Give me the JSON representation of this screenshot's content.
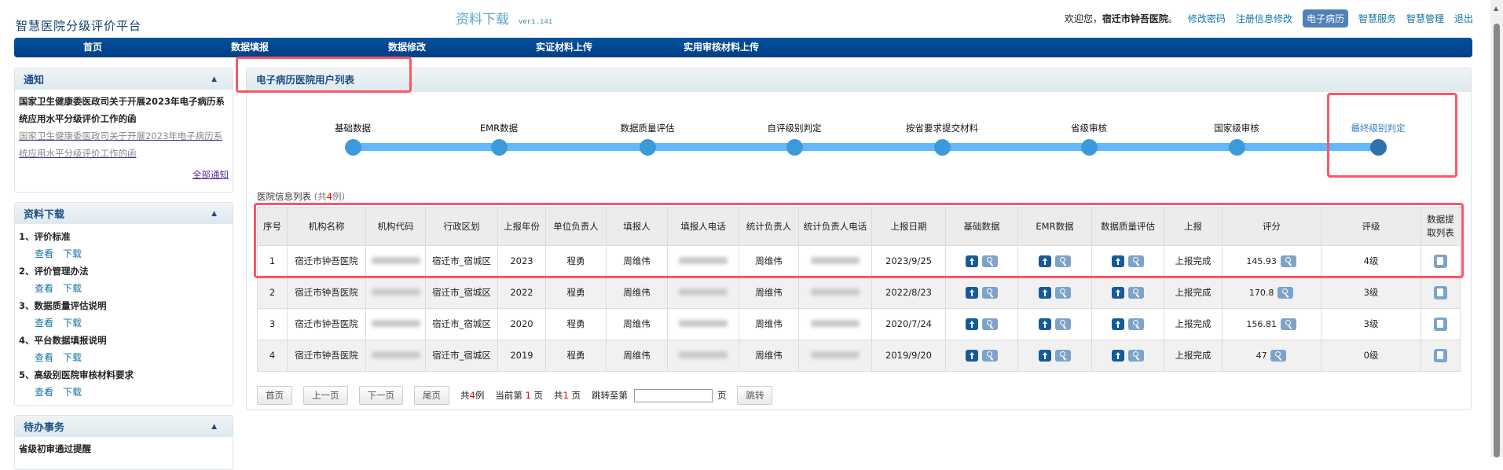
{
  "header": {
    "logo": "智慧医院分级评价平台",
    "page_title": "资料下载",
    "version": "ver1.141",
    "welcome_prefix": "欢迎您，",
    "user": "宿迁市钟吾医院",
    "welcome_suffix": "。",
    "links": [
      "修改密码",
      "注册信息修改",
      "电子病历",
      "智慧服务",
      "智慧管理",
      "退出"
    ],
    "active_link": "电子病历"
  },
  "nav": [
    "首页",
    "数据填报",
    "数据修改",
    "实证材料上传",
    "实用审核材料上传"
  ],
  "sidebar": {
    "notice": {
      "title": "通知",
      "bold_item": "国家卫生健康委医政司关于开展2023年电子病历系统应用水平分级评价工作的函",
      "link_item": "国家卫生健康委医政司关于开展2023年电子病历系统应用水平分级评价工作的函",
      "all_link": "全部通知"
    },
    "downloads": {
      "title": "资料下载",
      "view_label": "查看",
      "download_label": "下载",
      "items": [
        "1、评价标准",
        "2、评价管理办法",
        "3、数据质量评估说明",
        "4、平台数据填报说明",
        "5、高级别医院审核材料要求"
      ]
    },
    "todo": {
      "title": "待办事务",
      "items": [
        "省级初审通过提醒"
      ]
    }
  },
  "main": {
    "title": "电子病历医院用户列表",
    "steps": [
      "基础数据",
      "EMR数据",
      "数据质量评估",
      "自评级别判定",
      "按省要求提交材料",
      "省级审核",
      "国家级审核",
      "最终级别判定"
    ],
    "current_step": "最终级别判定",
    "caption": {
      "label": "医院信息列表",
      "open": "(共",
      "count": "4",
      "close": "例)"
    },
    "columns": [
      "序号",
      "机构名称",
      "机构代码",
      "行政区划",
      "上报年份",
      "单位负责人",
      "填报人",
      "填报人电话",
      "统计负责人",
      "统计负责人电话",
      "上报日期",
      "基础数据",
      "EMR数据",
      "数据质量评估",
      "上报",
      "评分",
      "评级",
      "数据提取列表"
    ],
    "rows": [
      {
        "no": "1",
        "name": "宿迁市钟吾医院",
        "region": "宿迁市_宿城区",
        "year": "2023",
        "head": "程勇",
        "filler": "周维伟",
        "stat": "周维伟",
        "date": "2023/9/25",
        "status": "上报完成",
        "score": "145.93",
        "level": "4级"
      },
      {
        "no": "2",
        "name": "宿迁市钟吾医院",
        "region": "宿迁市_宿城区",
        "year": "2022",
        "head": "程勇",
        "filler": "周维伟",
        "stat": "周维伟",
        "date": "2022/8/23",
        "status": "上报完成",
        "score": "170.8",
        "level": "3级"
      },
      {
        "no": "3",
        "name": "宿迁市钟吾医院",
        "region": "宿迁市_宿城区",
        "year": "2020",
        "head": "程勇",
        "filler": "周维伟",
        "stat": "周维伟",
        "date": "2020/7/24",
        "status": "上报完成",
        "score": "156.81",
        "level": "3级"
      },
      {
        "no": "4",
        "name": "宿迁市钟吾医院",
        "region": "宿迁市_宿城区",
        "year": "2019",
        "head": "程勇",
        "filler": "周维伟",
        "stat": "周维伟",
        "date": "2019/9/20",
        "status": "上报完成",
        "score": "47",
        "level": "0级"
      }
    ],
    "pager": {
      "first": "首页",
      "prev": "上一页",
      "next": "下一页",
      "last": "尾页",
      "total_prefix": "共",
      "total": "4",
      "total_suffix": "例",
      "current_prefix": "当前第",
      "current": "1",
      "current_suffix": "页",
      "pages_prefix": "共",
      "pages": "1",
      "pages_suffix": "页",
      "jump_prefix": "跳转至第",
      "jump_input": "",
      "jump_suffix": "页",
      "jump_button": "跳转"
    }
  },
  "colors": {
    "nav": "#024a93",
    "accent": "#1474a6",
    "step_line": "#62b8fa",
    "step_dot": "#3b9ad9",
    "highlight": "#ff5566"
  }
}
